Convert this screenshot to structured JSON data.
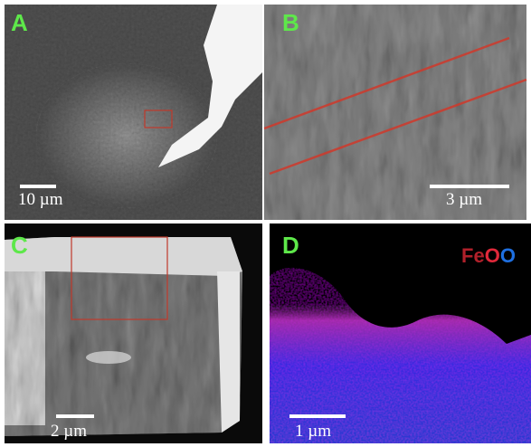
{
  "panels": [
    {
      "label": "A",
      "scale_bar": "10 µm"
    },
    {
      "label": "B",
      "scale_bar": "3 µm"
    },
    {
      "label": "C",
      "scale_bar": "2 µm"
    },
    {
      "label": "D",
      "scale_bar": "1 µm"
    }
  ],
  "legend": [
    {
      "text": "Fe",
      "color": "#b0202a"
    },
    {
      "text": "O",
      "color": "#e0283a"
    },
    {
      "text": "O",
      "color": "#1e6fe0"
    }
  ]
}
